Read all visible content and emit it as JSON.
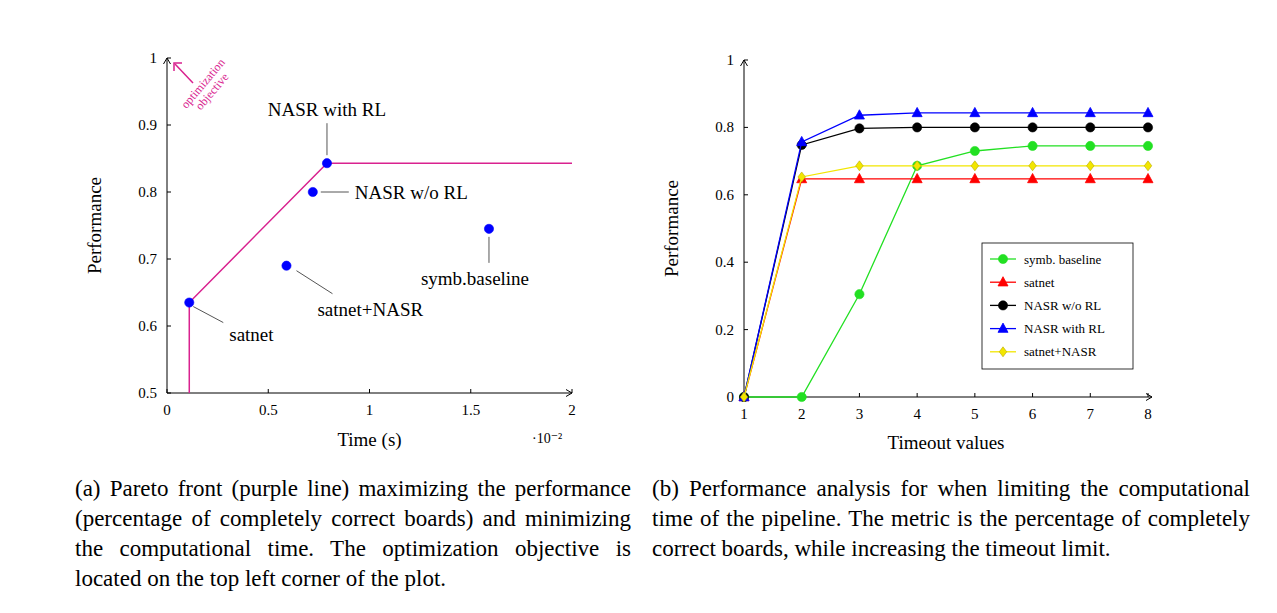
{
  "chart_data": [
    {
      "type": "scatter",
      "xlabel": "Time (s)",
      "x_exponent": "·10⁻²",
      "ylabel": "Performance",
      "xlim": [
        0,
        2
      ],
      "ylim": [
        0.5,
        1
      ],
      "xticks": [
        0,
        0.5,
        1,
        1.5,
        2
      ],
      "yticks": [
        0.5,
        0.6,
        0.7,
        0.8,
        0.9,
        1
      ],
      "grid": false,
      "color": "#0000ff",
      "marker": "circle",
      "points": [
        {
          "label": "NASR with RL",
          "x": 0.79,
          "y": 0.843
        },
        {
          "label": "NASR w/o RL",
          "x": 0.72,
          "y": 0.8
        },
        {
          "label": "satnet+NASR",
          "x": 0.59,
          "y": 0.69
        },
        {
          "label": "satnet",
          "x": 0.11,
          "y": 0.635
        },
        {
          "label": "symb.baseline",
          "x": 1.59,
          "y": 0.745
        }
      ],
      "pareto_front": {
        "color": "#d9228f",
        "x": [
          0.11,
          0.11,
          0.79,
          2
        ],
        "y": [
          0.5,
          0.635,
          0.843,
          0.843
        ]
      },
      "annotation": [
        "optimization",
        "objective"
      ],
      "caption": "(a) Pareto front (purple line) maximizing the performance (percentage of completely correct boards) and minimizing the computational time. The optimization objective is located on the top left corner of the plot."
    },
    {
      "type": "line",
      "xlabel": "Timeout values",
      "ylabel": "Performance",
      "xlim": [
        1,
        8
      ],
      "ylim": [
        0,
        1
      ],
      "xticks": [
        1,
        2,
        3,
        4,
        5,
        6,
        7,
        8
      ],
      "yticks": [
        0,
        0.2,
        0.4,
        0.6,
        0.8,
        1
      ],
      "grid": false,
      "legend": "right",
      "x": [
        1,
        2,
        3,
        4,
        5,
        6,
        7,
        8
      ],
      "series": [
        {
          "name": "symb. baseline",
          "color": "#22e022",
          "marker": "circle",
          "values": [
            0,
            0,
            0.305,
            0.686,
            0.73,
            0.745,
            0.745,
            0.745
          ]
        },
        {
          "name": "satnet",
          "color": "#ff0000",
          "marker": "triangle",
          "values": [
            0,
            0.647,
            0.647,
            0.647,
            0.647,
            0.647,
            0.647,
            0.647
          ]
        },
        {
          "name": "NASR w/o RL",
          "color": "#000000",
          "marker": "circle",
          "values": [
            0,
            0.748,
            0.797,
            0.8,
            0.8,
            0.8,
            0.8,
            0.8
          ]
        },
        {
          "name": "NASR with RL",
          "color": "#0000ff",
          "marker": "triangle",
          "values": [
            0,
            0.757,
            0.836,
            0.843,
            0.843,
            0.843,
            0.843,
            0.843
          ]
        },
        {
          "name": "satnet+NASR",
          "color": "#f2e600",
          "marker": "diamond",
          "values": [
            0,
            0.653,
            0.686,
            0.686,
            0.686,
            0.686,
            0.686,
            0.686
          ]
        }
      ],
      "caption": "(b) Performance analysis for when limiting the computational time of the pipeline. The metric is the percentage of completely correct boards, while increasing the timeout limit."
    }
  ]
}
